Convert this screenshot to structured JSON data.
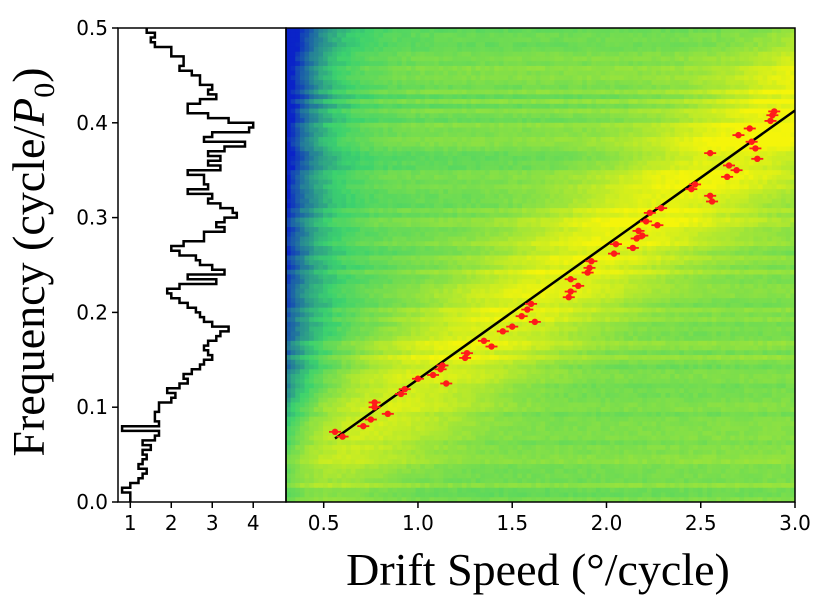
{
  "chart_data": {
    "type": "heatmap",
    "ylabel_prefix": "Frequency (cycle/",
    "ylabel_var": "P",
    "ylabel_sub": "0",
    "ylabel_suffix": ")",
    "xlabel": "Drift Speed (°/cycle)",
    "ylim": [
      0.0,
      0.5
    ],
    "xlim": [
      0.3,
      3.0
    ],
    "hist_xlim": [
      0.7,
      4.8
    ],
    "y_ticks": [
      "0.0",
      "0.1",
      "0.2",
      "0.3",
      "0.4",
      "0.5"
    ],
    "x_ticks": [
      "0.5",
      "1.0",
      "1.5",
      "2.0",
      "2.5",
      "3.0"
    ],
    "hist_x_ticks": [
      "1",
      "2",
      "3",
      "4"
    ],
    "colors": {
      "fit_line": "#000000",
      "points": "#ff1a1a",
      "histogram": "#000000",
      "colormap_low": "#0a23c8",
      "colormap_mid": "#3cd26e",
      "colormap_high": "#f5f50a"
    },
    "fit_line": {
      "x": [
        0.56,
        3.0
      ],
      "y": [
        0.067,
        0.413
      ]
    },
    "points": [
      {
        "x": 0.56,
        "y": 0.074
      },
      {
        "x": 0.6,
        "y": 0.069
      },
      {
        "x": 0.71,
        "y": 0.08
      },
      {
        "x": 0.75,
        "y": 0.087
      },
      {
        "x": 0.77,
        "y": 0.1
      },
      {
        "x": 0.77,
        "y": 0.105
      },
      {
        "x": 0.84,
        "y": 0.093
      },
      {
        "x": 0.91,
        "y": 0.114
      },
      {
        "x": 0.93,
        "y": 0.119
      },
      {
        "x": 1.0,
        "y": 0.13
      },
      {
        "x": 1.08,
        "y": 0.134
      },
      {
        "x": 1.12,
        "y": 0.14
      },
      {
        "x": 1.13,
        "y": 0.144
      },
      {
        "x": 1.15,
        "y": 0.125
      },
      {
        "x": 1.25,
        "y": 0.152
      },
      {
        "x": 1.26,
        "y": 0.157
      },
      {
        "x": 1.35,
        "y": 0.17
      },
      {
        "x": 1.39,
        "y": 0.164
      },
      {
        "x": 1.45,
        "y": 0.18
      },
      {
        "x": 1.5,
        "y": 0.185
      },
      {
        "x": 1.55,
        "y": 0.196
      },
      {
        "x": 1.58,
        "y": 0.203
      },
      {
        "x": 1.6,
        "y": 0.209
      },
      {
        "x": 1.62,
        "y": 0.19
      },
      {
        "x": 1.8,
        "y": 0.216
      },
      {
        "x": 1.81,
        "y": 0.222
      },
      {
        "x": 1.81,
        "y": 0.235
      },
      {
        "x": 1.85,
        "y": 0.228
      },
      {
        "x": 1.9,
        "y": 0.242
      },
      {
        "x": 1.91,
        "y": 0.247
      },
      {
        "x": 1.92,
        "y": 0.254
      },
      {
        "x": 2.04,
        "y": 0.262
      },
      {
        "x": 2.05,
        "y": 0.272
      },
      {
        "x": 2.14,
        "y": 0.268
      },
      {
        "x": 2.16,
        "y": 0.278
      },
      {
        "x": 2.17,
        "y": 0.286
      },
      {
        "x": 2.19,
        "y": 0.281
      },
      {
        "x": 2.21,
        "y": 0.296
      },
      {
        "x": 2.23,
        "y": 0.305
      },
      {
        "x": 2.27,
        "y": 0.292
      },
      {
        "x": 2.29,
        "y": 0.31
      },
      {
        "x": 2.45,
        "y": 0.33
      },
      {
        "x": 2.47,
        "y": 0.335
      },
      {
        "x": 2.55,
        "y": 0.323
      },
      {
        "x": 2.56,
        "y": 0.317
      },
      {
        "x": 2.55,
        "y": 0.368
      },
      {
        "x": 2.64,
        "y": 0.343
      },
      {
        "x": 2.65,
        "y": 0.355
      },
      {
        "x": 2.69,
        "y": 0.35
      },
      {
        "x": 2.7,
        "y": 0.387
      },
      {
        "x": 2.76,
        "y": 0.394
      },
      {
        "x": 2.77,
        "y": 0.38
      },
      {
        "x": 2.79,
        "y": 0.373
      },
      {
        "x": 2.8,
        "y": 0.362
      },
      {
        "x": 2.87,
        "y": 0.402
      },
      {
        "x": 2.88,
        "y": 0.408
      },
      {
        "x": 2.89,
        "y": 0.412
      }
    ],
    "histogram": {
      "bin_start": 0.0,
      "bin_width": 0.005,
      "counts": [
        1.0,
        1.0,
        0.8,
        1.0,
        1.2,
        1.3,
        1.4,
        1.2,
        1.3,
        1.4,
        1.3,
        1.5,
        1.3,
        1.6,
        1.7,
        0.8,
        1.7,
        1.6,
        1.6,
        1.7,
        1.7,
        2.0,
        2.1,
        1.9,
        2.2,
        2.4,
        2.3,
        2.5,
        2.7,
        2.8,
        3.0,
        2.9,
        2.8,
        2.9,
        3.1,
        3.2,
        3.4,
        3.0,
        2.8,
        2.7,
        2.6,
        2.4,
        2.2,
        2.0,
        1.9,
        2.2,
        3.1,
        2.4,
        3.3,
        3.0,
        2.7,
        2.6,
        2.2,
        2.0,
        2.3,
        2.8,
        2.8,
        3.3,
        3.1,
        3.3,
        3.6,
        3.5,
        3.2,
        2.9,
        3.0,
        2.4,
        2.9,
        2.8,
        2.8,
        2.4,
        3.2,
        2.9,
        3.2,
        2.9,
        3.3,
        3.8,
        2.8,
        3.0,
        3.9,
        4.0,
        3.4,
        2.9,
        2.4,
        2.4,
        2.7,
        3.1,
        2.9,
        3.0,
        2.7,
        2.7,
        2.5,
        2.2,
        2.3,
        2.3,
        2.0,
        2.0,
        1.6,
        1.5,
        1.6,
        1.4
      ]
    }
  }
}
